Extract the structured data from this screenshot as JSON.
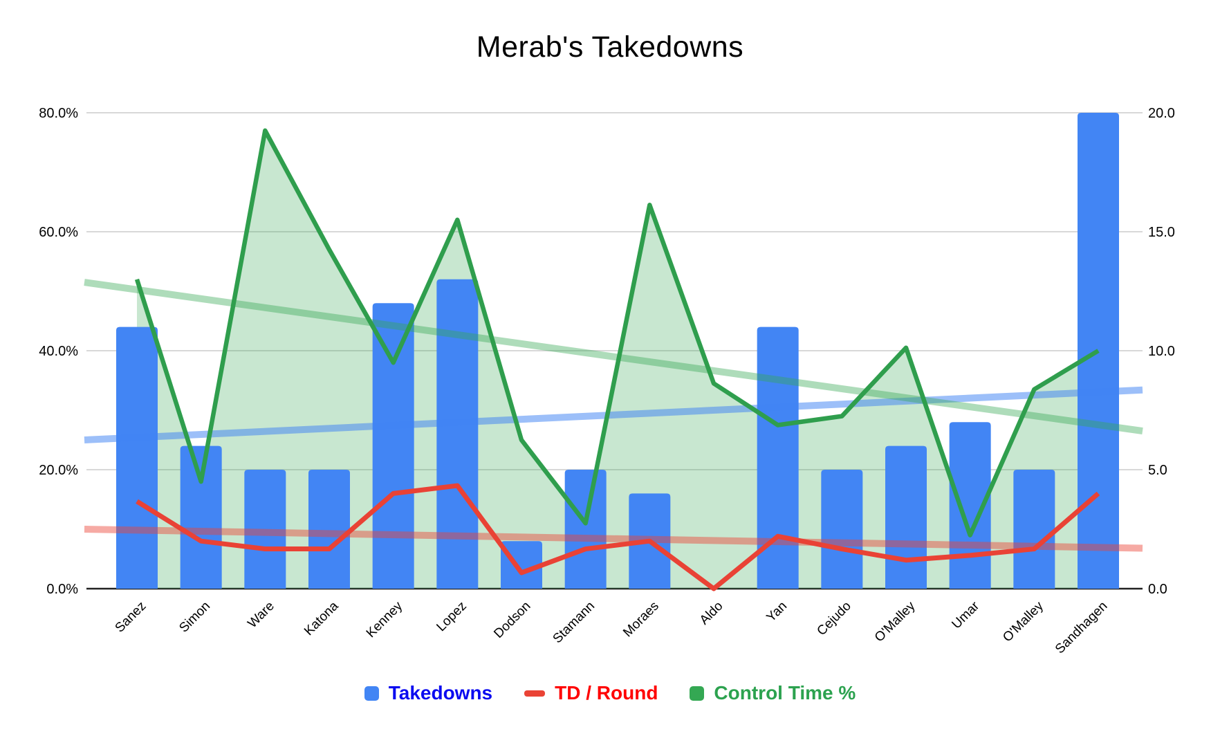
{
  "title": "Merab's Takedowns",
  "legend": {
    "items": [
      {
        "label": "Takedowns",
        "text_color": "#0b0bf0",
        "swatch_color": "#4285f4",
        "swatch_shape": "square"
      },
      {
        "label": "TD / Round",
        "text_color": "#ff0000",
        "swatch_color": "#ea4335",
        "swatch_shape": "dash"
      },
      {
        "label": "Control Time %",
        "text_color": "#2ca24f",
        "swatch_color": "#34a853",
        "swatch_shape": "square"
      }
    ]
  },
  "chart_data": {
    "type": "combo",
    "categories": [
      "Sanez",
      "Simon",
      "Ware",
      "Katona",
      "Kenney",
      "Lopez",
      "Dodson",
      "Stamann",
      "Moraes",
      "Aldo",
      "Yan",
      "Cejudo",
      "O'Malley",
      "Umar",
      "O'Malley",
      "Sandhagen"
    ],
    "series": [
      {
        "name": "Takedowns",
        "type": "bar",
        "axis": "right",
        "color": "#4285f4",
        "values": [
          11,
          6,
          5,
          5,
          12,
          13,
          2,
          5,
          4,
          0,
          11,
          5,
          6,
          7,
          5,
          20
        ]
      },
      {
        "name": "TD / Round",
        "type": "line",
        "axis": "right",
        "color": "#e94235",
        "values": [
          3.67,
          2,
          1.67,
          1.67,
          4,
          4.33,
          0.67,
          1.67,
          2,
          0,
          2.2,
          1.67,
          1.2,
          1.4,
          1.67,
          4
        ]
      },
      {
        "name": "Control Time %",
        "type": "area",
        "axis": "left",
        "color": "#2f9e4d",
        "fill": "rgba(52,168,83,0.27)",
        "values": [
          52,
          18,
          77,
          57,
          38,
          62,
          25,
          11,
          64.5,
          34.5,
          27.5,
          29,
          40.5,
          9,
          33.5,
          40
        ]
      }
    ],
    "trendlines": [
      {
        "series": "Takedowns",
        "axis": "right",
        "start": 6.25,
        "end": 8.35,
        "color": "rgba(66,133,244,0.52)"
      },
      {
        "series": "TD / Round",
        "axis": "right",
        "start": 2.5,
        "end": 1.7,
        "color": "rgba(234,67,53,0.45)"
      },
      {
        "series": "Control Time %",
        "axis": "left",
        "start": 51.5,
        "end": 26.5,
        "color": "rgba(52,168,83,0.40)"
      }
    ],
    "left_axis": {
      "min": 0,
      "max": 80,
      "ticks": [
        "0.0%",
        "20.0%",
        "40.0%",
        "60.0%",
        "80.0%"
      ]
    },
    "right_axis": {
      "min": 0,
      "max": 20,
      "ticks": [
        "0.0",
        "5.0",
        "10.0",
        "15.0",
        "20.0"
      ]
    },
    "grid": {
      "color": "#d8d8d8",
      "baseline_color": "#212121"
    },
    "legend_position": "bottom",
    "title": "Merab's Takedowns"
  }
}
